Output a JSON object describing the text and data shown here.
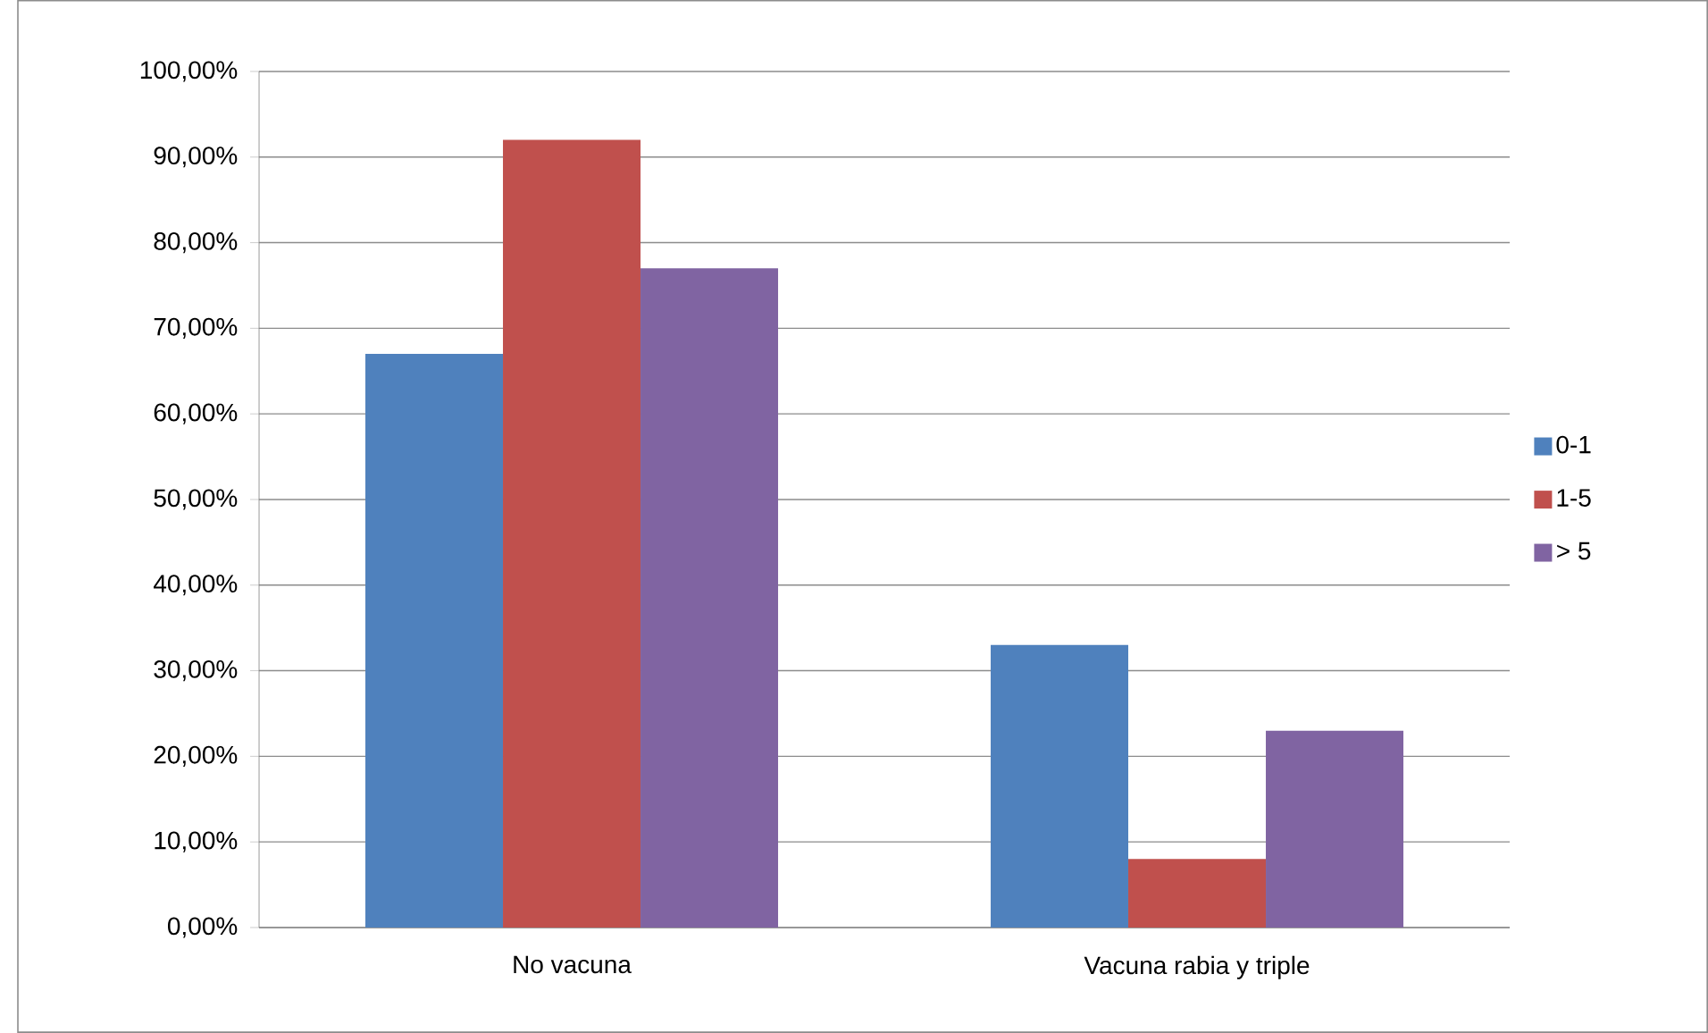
{
  "chart_data": {
    "type": "bar",
    "categories": [
      "No vacuna",
      "Vacuna rabia y triple"
    ],
    "series": [
      {
        "name": "0-1",
        "color": "#4f81bd",
        "values": [
          67,
          33
        ]
      },
      {
        "name": "1-5",
        "color": "#c0504d",
        "values": [
          92,
          8
        ]
      },
      {
        "name": "> 5",
        "color": "#8064a2",
        "values": [
          77,
          23
        ]
      }
    ],
    "ylim": [
      0,
      100
    ],
    "yticks": [
      {
        "value": 0,
        "label": "0,00%"
      },
      {
        "value": 10,
        "label": "10,00%"
      },
      {
        "value": 20,
        "label": "20,00%"
      },
      {
        "value": 30,
        "label": "30,00%"
      },
      {
        "value": 40,
        "label": "40,00%"
      },
      {
        "value": 50,
        "label": "50,00%"
      },
      {
        "value": 60,
        "label": "60,00%"
      },
      {
        "value": 70,
        "label": "70,00%"
      },
      {
        "value": 80,
        "label": "80,00%"
      },
      {
        "value": 90,
        "label": "90,00%"
      },
      {
        "value": 100,
        "label": "100,00%"
      }
    ],
    "grid": "y",
    "legend": "right"
  }
}
